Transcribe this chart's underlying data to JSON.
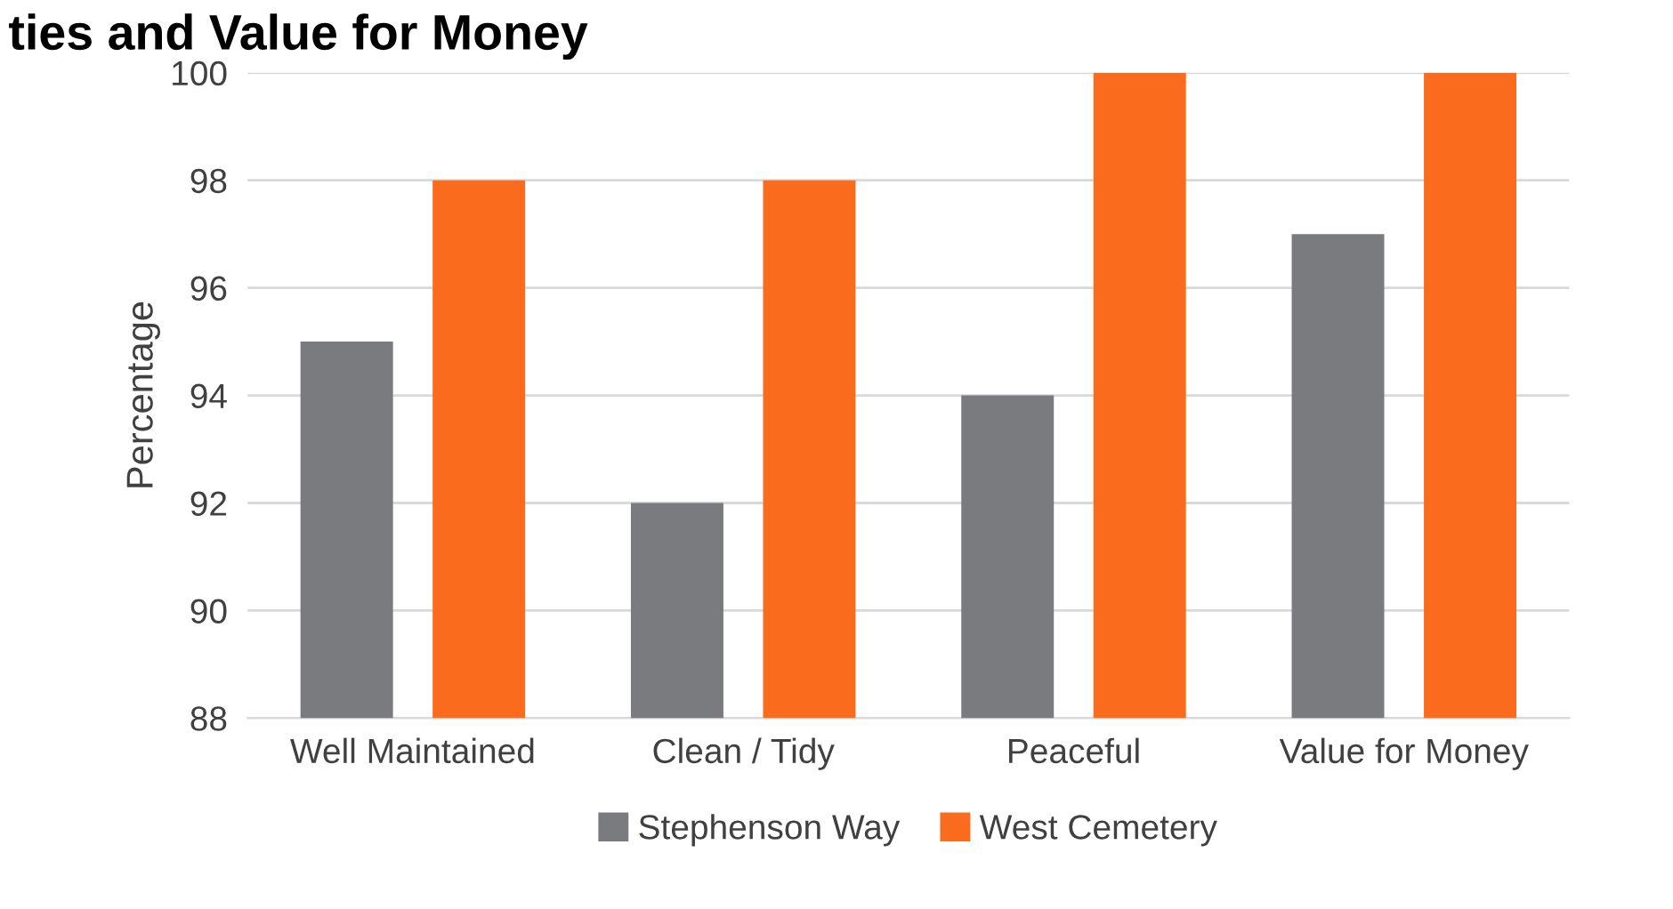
{
  "chart_data": {
    "type": "bar",
    "title": "ties and Value for Money",
    "ylabel": "Percentage",
    "categories": [
      "Well Maintained",
      "Clean / Tidy",
      "Peaceful",
      "Value for Money"
    ],
    "series": [
      {
        "name": "Stephenson Way",
        "color": "#7a7b7f",
        "values": [
          95,
          92,
          94,
          97
        ]
      },
      {
        "name": "West Cemetery",
        "color": "#fb6b1d",
        "values": [
          98,
          98,
          100,
          100
        ]
      }
    ],
    "ylim": [
      88,
      100
    ],
    "yticks": [
      88,
      90,
      92,
      94,
      96,
      98,
      100
    ],
    "grid": "y",
    "legend": "bottom"
  }
}
